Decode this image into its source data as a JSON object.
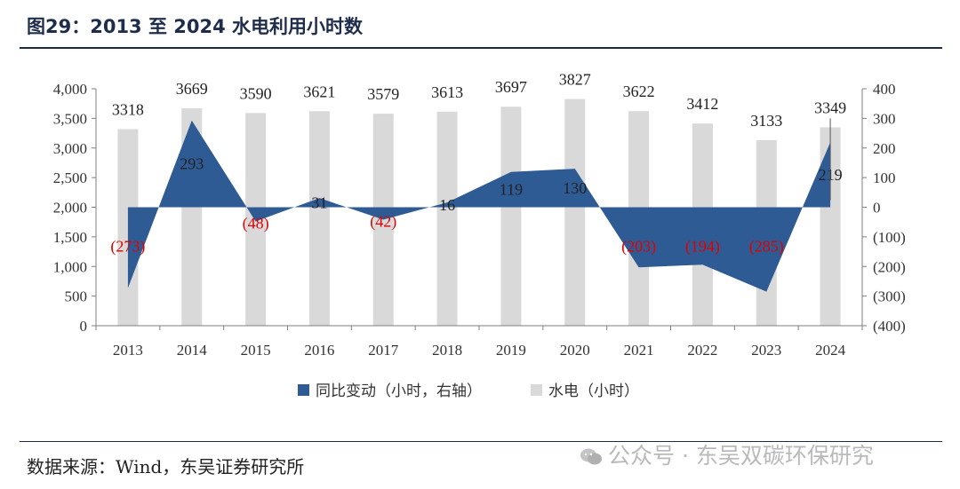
{
  "header": {
    "title": "图29：2013 至 2024 水电利用小时数"
  },
  "footer": {
    "source": "数据来源：Wind，东吴证券研究所",
    "watermark": "公众号 · 东吴双碳环保研究"
  },
  "colors": {
    "bar": "#d9d9d9",
    "area": "#2e5b94",
    "negative_label": "#e00000",
    "text": "#222222"
  },
  "chart_data": {
    "type": "bar",
    "categories": [
      "2013",
      "2014",
      "2015",
      "2016",
      "2017",
      "2018",
      "2019",
      "2020",
      "2021",
      "2022",
      "2023",
      "2024"
    ],
    "series": [
      {
        "name": "水电（小时）",
        "type": "bar",
        "axis": "left",
        "values": [
          3318,
          3669,
          3590,
          3621,
          3579,
          3613,
          3697,
          3827,
          3622,
          3412,
          3133,
          3349
        ]
      },
      {
        "name": "同比变动（小时，右轴）",
        "type": "area",
        "axis": "right",
        "values": [
          -273,
          293,
          -48,
          31,
          -42,
          16,
          119,
          130,
          -203,
          -194,
          -285,
          219
        ]
      }
    ],
    "bar_labels": [
      "3318",
      "3669",
      "3590",
      "3621",
      "3579",
      "3613",
      "3697",
      "3827",
      "3622",
      "3412",
      "3133",
      "3349"
    ],
    "area_labels": [
      "(273)",
      "293",
      "(48)",
      "31",
      "(42)",
      "16",
      "119",
      "130",
      "(203)",
      "(194)",
      "(285)",
      "219"
    ],
    "y_left": {
      "range": [
        0,
        4000
      ],
      "ticks": [
        0,
        500,
        1000,
        1500,
        2000,
        2500,
        3000,
        3500,
        4000
      ],
      "tick_labels": [
        "0",
        "500",
        "1,000",
        "1,500",
        "2,000",
        "2,500",
        "3,000",
        "3,500",
        "4,000"
      ]
    },
    "y_right": {
      "range": [
        -400,
        400
      ],
      "ticks": [
        -400,
        -300,
        -200,
        -100,
        0,
        100,
        200,
        300,
        400
      ],
      "tick_labels": [
        "(400)",
        "(300)",
        "(200)",
        "(100)",
        "0",
        "100",
        "200",
        "300",
        "400"
      ]
    },
    "legend": {
      "position": "bottom",
      "items": [
        "同比变动（小时，右轴）",
        "水电（小时）"
      ]
    },
    "grid": false
  }
}
